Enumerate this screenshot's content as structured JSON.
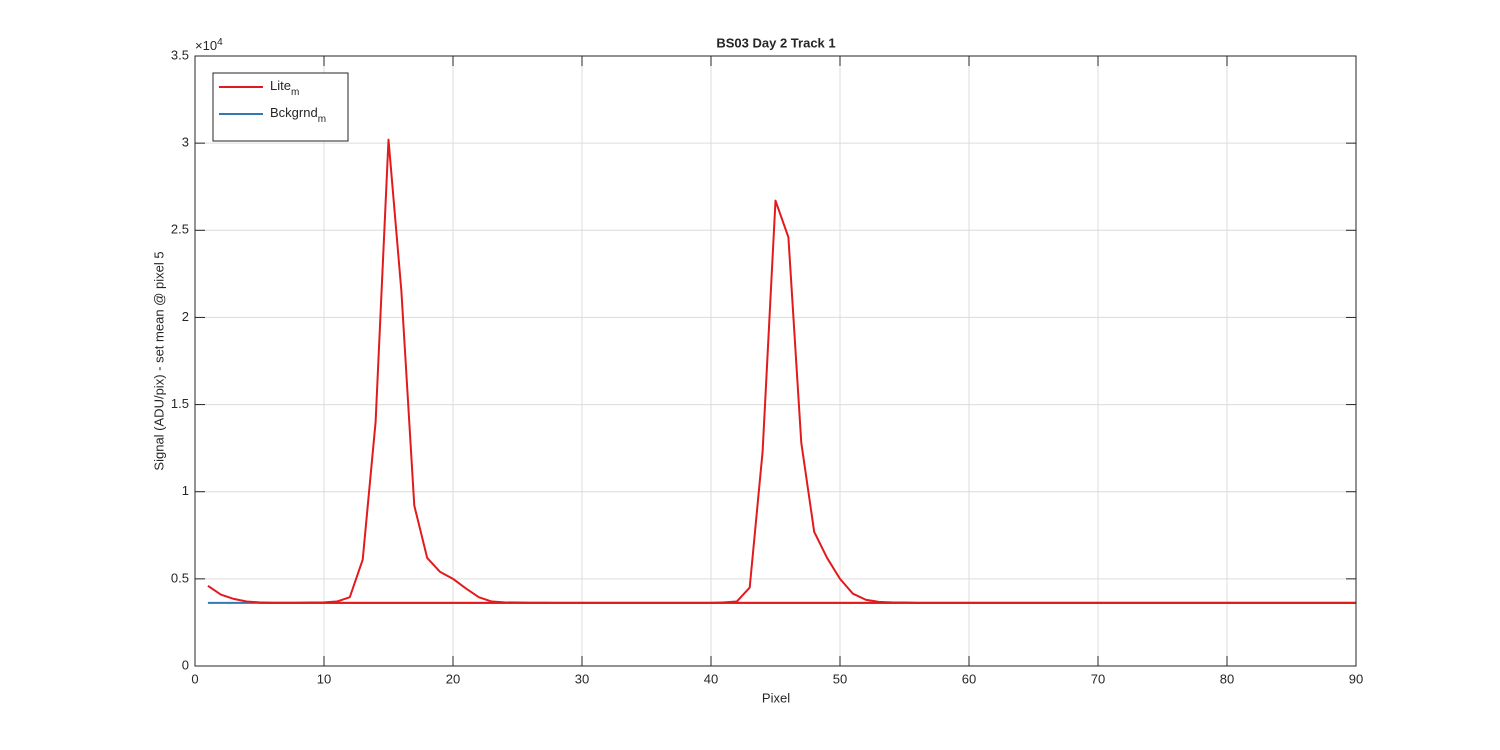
{
  "chart_data": {
    "type": "line",
    "title": "BS03 Day 2 Track 1",
    "x_label": "Pixel",
    "y_label": "Signal (ADU/pix) - set mean @ pixel 5",
    "y_exponent_base": "×10",
    "y_exponent": "4",
    "x": [
      1,
      2,
      3,
      4,
      5,
      6,
      7,
      8,
      9,
      10,
      11,
      12,
      13,
      14,
      15,
      16,
      17,
      18,
      19,
      20,
      21,
      22,
      23,
      24,
      25,
      26,
      27,
      28,
      29,
      30,
      31,
      32,
      33,
      34,
      35,
      36,
      37,
      38,
      39,
      40,
      41,
      42,
      43,
      44,
      45,
      46,
      47,
      48,
      49,
      50,
      51,
      52,
      53,
      54,
      55,
      56,
      57,
      58,
      59,
      60,
      61,
      62,
      63,
      64,
      65,
      66,
      67,
      68,
      69,
      70,
      71,
      72,
      73,
      74,
      75,
      76,
      77,
      78,
      79,
      80,
      81,
      82,
      83,
      84,
      85,
      86,
      87,
      88,
      89,
      90
    ],
    "series": [
      {
        "name": "Bckgrnd",
        "subscript": "m",
        "color": "#3478b0",
        "values": [
          3620,
          3620,
          3620,
          3620,
          3620,
          3620,
          3620,
          3620,
          3620,
          3620,
          3620,
          3620,
          3620,
          3620,
          3620,
          3620,
          3620,
          3620,
          3620,
          3620,
          3620,
          3620,
          3620,
          3620,
          3620,
          3620,
          3620,
          3620,
          3620,
          3620,
          3620,
          3620,
          3620,
          3620,
          3620,
          3620,
          3620,
          3620,
          3620,
          3620,
          3620,
          3620,
          3620,
          3620,
          3620,
          3620,
          3620,
          3620,
          3620,
          3620,
          3620,
          3620,
          3620,
          3620,
          3620,
          3620,
          3620,
          3620,
          3620,
          3620,
          3620,
          3620,
          3620,
          3620,
          3620,
          3620,
          3620,
          3620,
          3620,
          3620,
          3620,
          3620,
          3620,
          3620,
          3620,
          3620,
          3620,
          3620,
          3620,
          3620,
          3620,
          3620,
          3620,
          3620,
          3620,
          3620,
          3620,
          3620,
          3620,
          3620
        ]
      },
      {
        "color": "#e31a1c",
        "values": [
          null,
          null,
          null,
          null,
          3620,
          3620,
          3620,
          3620,
          3620,
          3620,
          3620,
          3620,
          3620,
          3620,
          3620,
          3620,
          3620,
          3620,
          3620,
          3620,
          3620,
          3620,
          3620,
          3620,
          3620,
          3620,
          3620,
          3620,
          3620,
          3620,
          3620,
          3620,
          3620,
          3620,
          3620,
          3620,
          3620,
          3620,
          3620,
          3620,
          3620,
          3620,
          3620,
          3620,
          3620,
          3620,
          3620,
          3620,
          3620,
          3620,
          3620,
          3620,
          3620,
          3620,
          3620,
          3620,
          3620,
          3620,
          3620,
          3620,
          3620,
          3620,
          3620,
          3620,
          3620,
          3620,
          3620,
          3620,
          3620,
          3620,
          3620,
          3620,
          3620,
          3620,
          3620,
          3620,
          3620,
          3620,
          3620,
          3620,
          3620,
          3620,
          3620,
          3620,
          3620,
          3620,
          3620,
          3620,
          3620,
          3620
        ]
      },
      {
        "name": "Lite",
        "subscript": "m",
        "color": "#e31a1c",
        "values": [
          4600,
          4100,
          3850,
          3700,
          3650,
          3630,
          3630,
          3630,
          3640,
          3650,
          3700,
          3950,
          6100,
          14000,
          30200,
          21500,
          9200,
          6200,
          5400,
          5000,
          4450,
          3950,
          3700,
          3650,
          3640,
          3630,
          3630,
          3620,
          3620,
          3620,
          3620,
          3620,
          3620,
          3620,
          3620,
          3620,
          3620,
          3620,
          3620,
          3620,
          3650,
          3700,
          4500,
          12300,
          26700,
          24600,
          12800,
          7700,
          6200,
          5000,
          4150,
          3800,
          3680,
          3650,
          3640,
          3620,
          3620,
          3620,
          3620,
          3620,
          3620,
          3620,
          3620,
          3620,
          3620,
          3620,
          3620,
          3620,
          3620,
          3620,
          3620,
          3620,
          3620,
          3620,
          3620,
          3620,
          3620,
          3620,
          3620,
          3620,
          3620,
          3620,
          3620,
          3620,
          3620,
          3620,
          3620,
          3620,
          3620,
          3620
        ]
      }
    ],
    "legend_order": [
      2,
      0
    ],
    "xlim": [
      0,
      90
    ],
    "xticks": [
      0,
      10,
      20,
      30,
      40,
      50,
      60,
      70,
      80,
      90
    ],
    "ylim": [
      0,
      35000
    ],
    "yticks": [
      0,
      {
        "value": 5000,
        "label": "0.5"
      },
      {
        "value": 10000,
        "label": "1"
      },
      {
        "value": 15000,
        "label": "1.5"
      },
      {
        "value": 20000,
        "label": "2"
      },
      {
        "value": 25000,
        "label": "2.5"
      },
      {
        "value": 30000,
        "label": "3"
      },
      {
        "value": 35000,
        "label": "3.5"
      }
    ],
    "grid": true,
    "legend": "top-left"
  }
}
